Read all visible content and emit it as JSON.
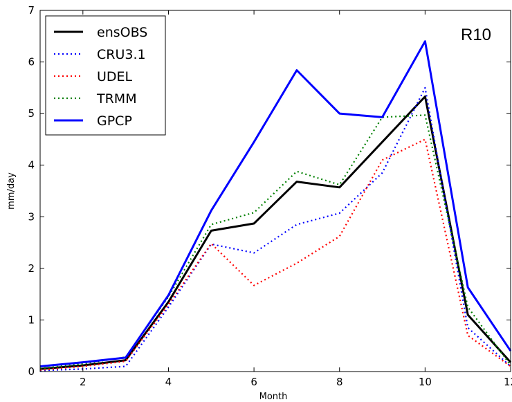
{
  "chart_data": {
    "type": "line",
    "title": "",
    "annotation": "R10",
    "xlabel": "Month",
    "ylabel": "mm/day",
    "xlim": [
      1,
      12
    ],
    "ylim": [
      0,
      7
    ],
    "xticks": [
      2,
      4,
      6,
      8,
      10,
      12
    ],
    "yticks": [
      0,
      1,
      2,
      3,
      4,
      5,
      6,
      7
    ],
    "grid": false,
    "legend_position": "top-left",
    "x": [
      1,
      2,
      3,
      4,
      5,
      6,
      7,
      8,
      9,
      10,
      11,
      12
    ],
    "series": [
      {
        "name": "ensOBS",
        "color": "#000000",
        "style": "solid",
        "values": [
          0.05,
          0.12,
          0.22,
          1.35,
          2.73,
          2.87,
          3.68,
          3.57,
          4.45,
          5.33,
          1.1,
          0.18
        ]
      },
      {
        "name": "CRU3.1",
        "color": "#0000ff",
        "style": "dotted",
        "values": [
          0.02,
          0.05,
          0.1,
          1.25,
          2.47,
          2.3,
          2.85,
          3.07,
          3.85,
          5.5,
          0.85,
          0.1
        ]
      },
      {
        "name": "UDEL",
        "color": "#ff0000",
        "style": "dotted",
        "values": [
          0.03,
          0.1,
          0.2,
          1.3,
          2.48,
          1.67,
          2.1,
          2.62,
          4.1,
          4.5,
          0.7,
          0.1
        ]
      },
      {
        "name": "TRMM",
        "color": "#008000",
        "style": "dotted",
        "values": [
          0.06,
          0.15,
          0.28,
          1.45,
          2.85,
          3.08,
          3.88,
          3.62,
          4.93,
          4.97,
          1.25,
          0.12
        ]
      },
      {
        "name": "GPCP",
        "color": "#0000ff",
        "style": "solid",
        "values": [
          0.1,
          0.18,
          0.27,
          1.48,
          3.12,
          4.45,
          5.84,
          5.0,
          4.93,
          6.4,
          1.63,
          0.4
        ]
      }
    ]
  }
}
